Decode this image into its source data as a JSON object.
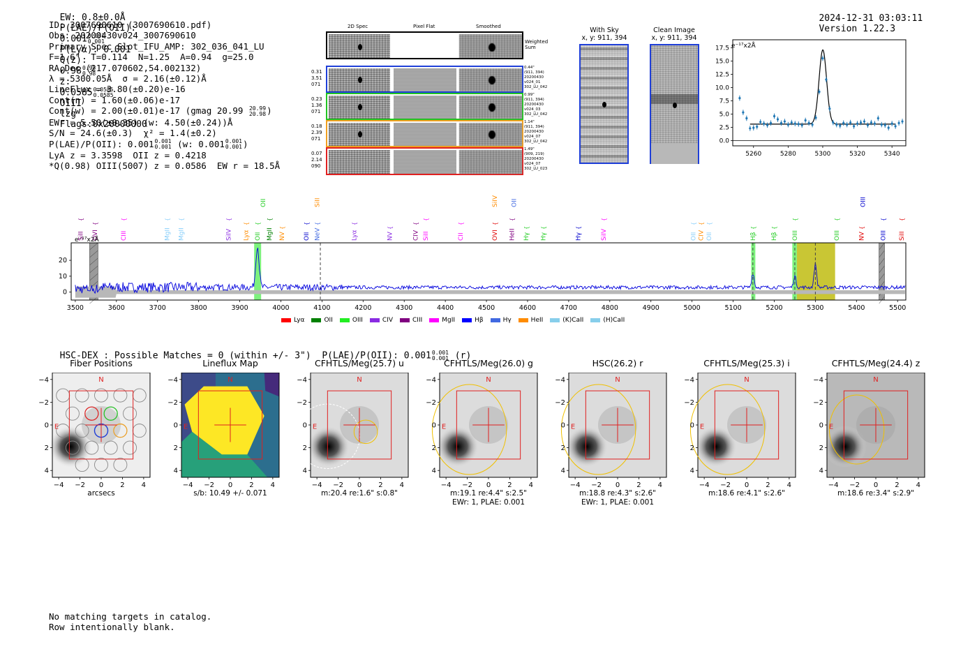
{
  "header": {
    "ew": "EW: 0.8±0.0Å",
    "plae_label": "P(LAE)/P(OII):",
    "plae_val": "0.001",
    "plae_hi": "0.001",
    "plae_lo": "0.001",
    "plya": "P(Lyα): 0.001",
    "qz_label": "Q(z):",
    "qz_val": "0.98",
    "qz_hi": "0.98",
    "qz_lo": "0.98",
    "z_label": "z:",
    "z_val": "0.0585",
    "z_hi": "0.0585",
    "z_lo": "0.0585",
    "line": "OIII",
    "tag": "lzg",
    "flags": "Flags:0x20000000",
    "timestamp": "2024-12-31 03:03:11",
    "version": "Version 1.22.3"
  },
  "info": {
    "id": "ID: 3007690610 (3007690610.pdf)",
    "obs": "Obs: 20200430v024_3007690610",
    "primary": "Primary Spec_Slot_IFU_AMP: 302_036_041_LU",
    "params": "F=1.6\"  T=0.114  N=1.25  A=0.94  g=25.0",
    "radec": "RA,Dec (217.070602,54.002132)",
    "lambda": "λ = 5300.05Å  σ = 2.16(±0.12)Å",
    "lineflux": "LineFlux = 3.80(±0.20)e-16",
    "contn": "Cont(n) = 1.60(±0.06)e-17",
    "contw_a": "Cont(w) = 2.00(±0.01)e-17 (gmag 20.99",
    "contw_hi": "20.99",
    "contw_lo": "20.98",
    "contw_b": ")",
    "ewr": "EWr = 5.50(±0.35) (w: 4.50(±0.24))Å",
    "sn": "S/N = 24.6(±0.3)  χ² = 1.4(±0.2)",
    "plae2_a": "P(LAE)/P(OII): 0.001",
    "plae2_hi": "0.001",
    "plae2_lo": "0.001",
    "plae2_b": "(w: 0.001",
    "plae2_whi": "0.001",
    "plae2_wlo": "0.001",
    "plae2_c": ")",
    "lya": "LyA z = 3.3598  OII z = 0.4218",
    "q": "*Q(0.98) OIII(5007) z = 0.0586  EW r = 18.5Å"
  },
  "cutouts": {
    "col_2d": "2D Spec",
    "col_flat": "Pixel Flat",
    "col_smooth": "Smoothed",
    "weighted": "Weighted Sum",
    "rows": [
      {
        "left": [
          "0.31",
          "3.51",
          "071"
        ],
        "right": [
          "0.44\"",
          "(911, 394)",
          "20200430",
          "v024_01",
          "302_LU_042"
        ],
        "color": "#1f3fd8"
      },
      {
        "left": [
          "0.23",
          "1.36",
          "071"
        ],
        "right": [
          "0.99\"",
          "(911, 394)",
          "20200430",
          "v024_03",
          "302_LU_042"
        ],
        "color": "#22c422"
      },
      {
        "left": [
          "0.18",
          "2.39",
          "071"
        ],
        "right": [
          "1.14\"",
          "(911, 394)",
          "20200430",
          "v024_07",
          "302_LU_042"
        ],
        "color": "#f0a020"
      },
      {
        "left": [
          "0.07",
          "2.14",
          "090"
        ],
        "right": [
          "1.49\"",
          "(909, 219)",
          "20200430",
          "v024_07",
          "302_LU_023"
        ],
        "color": "#e02020"
      }
    ]
  },
  "sky": {
    "with_sky": "With Sky",
    "with_sky_xy": "x, y: 911, 394",
    "clean": "Clean Image",
    "clean_xy": "x, y: 911, 394"
  },
  "chart_data": [
    {
      "type": "line",
      "title": "",
      "ylabel_unit": "e⁻¹⁷x2Å",
      "xlim": [
        5248,
        5348
      ],
      "ylim": [
        -1,
        19
      ],
      "x_ticks": [
        5260,
        5280,
        5300,
        5320,
        5340
      ],
      "y_ticks": [
        0.0,
        2.5,
        5.0,
        7.5,
        10.0,
        12.5,
        15.0,
        17.5
      ],
      "y_tick_labels": [
        "0.0",
        "2.5",
        "5.0",
        "7.5",
        "10.0",
        "12.5",
        "15.0",
        "17.5"
      ],
      "continuum": 3.1,
      "gauss": {
        "center": 5300.05,
        "sigma": 2.16,
        "amp": 14.0
      },
      "points": {
        "x": [
          5252,
          5254,
          5256,
          5258,
          5260,
          5262,
          5264,
          5266,
          5268,
          5270,
          5272,
          5274,
          5276,
          5278,
          5280,
          5282,
          5284,
          5286,
          5288,
          5290,
          5292,
          5294,
          5296,
          5298,
          5300,
          5302,
          5304,
          5306,
          5308,
          5310,
          5312,
          5314,
          5316,
          5318,
          5320,
          5322,
          5324,
          5326,
          5328,
          5330,
          5332,
          5334,
          5336,
          5338,
          5340,
          5342,
          5344,
          5346
        ],
        "y": [
          8.0,
          5.3,
          4.2,
          2.3,
          2.4,
          2.6,
          3.5,
          3.2,
          2.9,
          3.3,
          4.6,
          4.0,
          3.3,
          3.6,
          3.0,
          3.4,
          3.2,
          3.1,
          2.9,
          3.8,
          3.3,
          3.0,
          4.3,
          9.2,
          15.5,
          11.5,
          6.0,
          3.4,
          3.0,
          2.8,
          3.3,
          3.0,
          3.4,
          2.7,
          3.2,
          3.4,
          3.6,
          2.9,
          3.4,
          3.2,
          4.2,
          3.0,
          2.9,
          2.4,
          3.2,
          2.7,
          3.3,
          3.6
        ]
      }
    },
    {
      "type": "line",
      "ylabel_unit": "e⁻¹⁷x2Å",
      "xlim": [
        3490,
        5520
      ],
      "ylim": [
        -5,
        31
      ],
      "x_ticks": [
        3500,
        3600,
        3700,
        3800,
        3900,
        4000,
        4100,
        4200,
        4300,
        4400,
        4500,
        4600,
        4700,
        4800,
        4900,
        5000,
        5100,
        5200,
        5300,
        5400,
        5500
      ],
      "y_ticks": [
        0,
        10,
        20
      ],
      "peaks": [
        {
          "center": 3943,
          "sigma": 4,
          "amp": 26
        },
        {
          "center": 5148,
          "sigma": 3,
          "amp": 9
        },
        {
          "center": 5250,
          "sigma": 3,
          "amp": 7
        },
        {
          "center": 5300,
          "sigma": 3,
          "amp": 15
        }
      ],
      "highlights": [
        {
          "x0": 3935,
          "x1": 3952,
          "color": "#66ee66"
        },
        {
          "x0": 5144,
          "x1": 5154,
          "color": "#66ee66"
        },
        {
          "x0": 5244,
          "x1": 5255,
          "color": "#66ee66"
        },
        {
          "x0": 5255,
          "x1": 5348,
          "color": "#c0bc10"
        }
      ],
      "hatched": [
        {
          "x0": 3535,
          "x1": 3555
        },
        {
          "x0": 5455,
          "x1": 5468
        }
      ],
      "dashed_x": [
        4096,
        5148,
        5250,
        5300
      ],
      "line_labels": [
        {
          "x": 3513,
          "name": "SiII",
          "color": "#800080",
          "lvl": 0
        },
        {
          "x": 3548,
          "name": "OVI",
          "color": "#800080",
          "lvl": 0
        },
        {
          "x": 3617,
          "name": "CIII",
          "color": "#ff00ff",
          "lvl": 0
        },
        {
          "x": 3723,
          "name": "MgII",
          "color": "#87cefa",
          "lvl": 0
        },
        {
          "x": 3757,
          "name": "MgII",
          "color": "#87cefa",
          "lvl": 0
        },
        {
          "x": 3873,
          "name": "SiIV",
          "color": "#8a2be2",
          "lvl": 0
        },
        {
          "x": 3915,
          "name": "Lyα",
          "color": "#ff8c00",
          "lvl": 0
        },
        {
          "x": 3943,
          "name": "OII",
          "color": "#22cc22",
          "lvl": 0
        },
        {
          "x": 3957,
          "name": "OII",
          "color": "#22cc22",
          "lvl": 1
        },
        {
          "x": 3972,
          "name": "MgII",
          "color": "#008000",
          "lvl": 0
        },
        {
          "x": 4003,
          "name": "NV",
          "color": "#ff8c00",
          "lvl": 0
        },
        {
          "x": 4062,
          "name": "OII",
          "color": "#0000cd",
          "lvl": 0
        },
        {
          "x": 4088,
          "name": "NeV",
          "color": "#4169e1",
          "lvl": 0
        },
        {
          "x": 4088,
          "name": "SiII",
          "color": "#ff8c00",
          "lvl": 1
        },
        {
          "x": 4178,
          "name": "Lyα",
          "color": "#8a2be2",
          "lvl": 0
        },
        {
          "x": 4265,
          "name": "NV",
          "color": "#8a2be2",
          "lvl": 0
        },
        {
          "x": 4328,
          "name": "CIV",
          "color": "#800080",
          "lvl": 0
        },
        {
          "x": 4352,
          "name": "SiII",
          "color": "#ff00ff",
          "lvl": 0
        },
        {
          "x": 4437,
          "name": "CII",
          "color": "#ff00ff",
          "lvl": 0
        },
        {
          "x": 4520,
          "name": "OVI",
          "color": "#e00000",
          "lvl": 0
        },
        {
          "x": 4520,
          "name": "SiIV",
          "color": "#ff8c00",
          "lvl": 1
        },
        {
          "x": 4562,
          "name": "HeII",
          "color": "#800080",
          "lvl": 0
        },
        {
          "x": 4567,
          "name": "OII",
          "color": "#4169e1",
          "lvl": 1
        },
        {
          "x": 4597,
          "name": "Hγ",
          "color": "#22cc22",
          "lvl": 0
        },
        {
          "x": 4638,
          "name": "Hγ",
          "color": "#22cc22",
          "lvl": 0
        },
        {
          "x": 4723,
          "name": "Hγ",
          "color": "#0000cd",
          "lvl": 0
        },
        {
          "x": 4785,
          "name": "SiIV",
          "color": "#ff00ff",
          "lvl": 0
        },
        {
          "x": 5003,
          "name": "OII",
          "color": "#87cefa",
          "lvl": 0
        },
        {
          "x": 5022,
          "name": "CIV",
          "color": "#ff8c00",
          "lvl": 0
        },
        {
          "x": 5041,
          "name": "OII",
          "color": "#87cefa",
          "lvl": 0
        },
        {
          "x": 5148,
          "name": "Hβ",
          "color": "#22cc22",
          "lvl": 0
        },
        {
          "x": 5199,
          "name": "Hβ",
          "color": "#22cc22",
          "lvl": 0
        },
        {
          "x": 5250,
          "name": "OIII",
          "color": "#22cc22",
          "lvl": 0
        },
        {
          "x": 5352,
          "name": "OIII",
          "color": "#22cc22",
          "lvl": 0
        },
        {
          "x": 5412,
          "name": "NV",
          "color": "#e00000",
          "lvl": 0
        },
        {
          "x": 5416,
          "name": "OIII",
          "color": "#0000cd",
          "lvl": 1
        },
        {
          "x": 5465,
          "name": "OIII",
          "color": "#0000cd",
          "lvl": 0
        },
        {
          "x": 5510,
          "name": "SiII",
          "color": "#e00000",
          "lvl": 0
        }
      ],
      "legend": [
        {
          "name": "Lyα",
          "color": "#ff0000"
        },
        {
          "name": "OII",
          "color": "#008000"
        },
        {
          "name": "OIII",
          "color": "#22ee22"
        },
        {
          "name": "CIV",
          "color": "#8a2be2"
        },
        {
          "name": "CIII",
          "color": "#800080"
        },
        {
          "name": "MgII",
          "color": "#ff00ff"
        },
        {
          "name": "Hβ",
          "color": "#0000ff"
        },
        {
          "name": "Hγ",
          "color": "#4169e1"
        },
        {
          "name": "HeII",
          "color": "#ff8c00"
        },
        {
          "name": "(K)CaII",
          "color": "#87ceeb"
        },
        {
          "name": "(H)CaII",
          "color": "#87ceeb"
        }
      ]
    }
  ],
  "hsc": {
    "summary_a": "HSC-DEX : Possible Matches = 0 (within +/- 3\")  P(LAE)/P(OII): 0.001",
    "summary_hi": "0.001",
    "summary_lo": "0.001",
    "summary_b": "(r)",
    "axis_ticks": [
      "−4",
      "−2",
      "0",
      "2",
      "4"
    ],
    "panels": [
      {
        "title": "Fiber Positions",
        "cap1": "arcsecs",
        "cap2": ""
      },
      {
        "title": "Lineflux Map",
        "cap1": "s/b: 10.49 +/- 0.071",
        "cap2": ""
      },
      {
        "title": "CFHTLS/Meg(25.7) u",
        "cap1": "m:20.4  re:1.6\"  s:0.8\"",
        "cap2": ""
      },
      {
        "title": "CFHTLS/Meg(26.0) g",
        "cap1": "m:19.1  re:4.4\"  s:2.5\"",
        "cap2": "EWr: 1, PLAE: 0.001"
      },
      {
        "title": "HSC(26.2) r",
        "cap1": "m:18.8  re:4.3\"  s:2.6\"",
        "cap2": "EWr: 1, PLAE: 0.001"
      },
      {
        "title": "CFHTLS/Meg(25.3) i",
        "cap1": "m:18.6  re:4.1\"  s:2.6\"",
        "cap2": ""
      },
      {
        "title": "CFHTLS/Meg(24.4) z",
        "cap1": "m:18.6  re:3.4\"  s:2.9\"",
        "cap2": ""
      }
    ],
    "n_label": "N",
    "e_label": "E"
  },
  "footer": {
    "line1": "No matching targets in catalog.",
    "line2": "Row intentionally blank."
  }
}
